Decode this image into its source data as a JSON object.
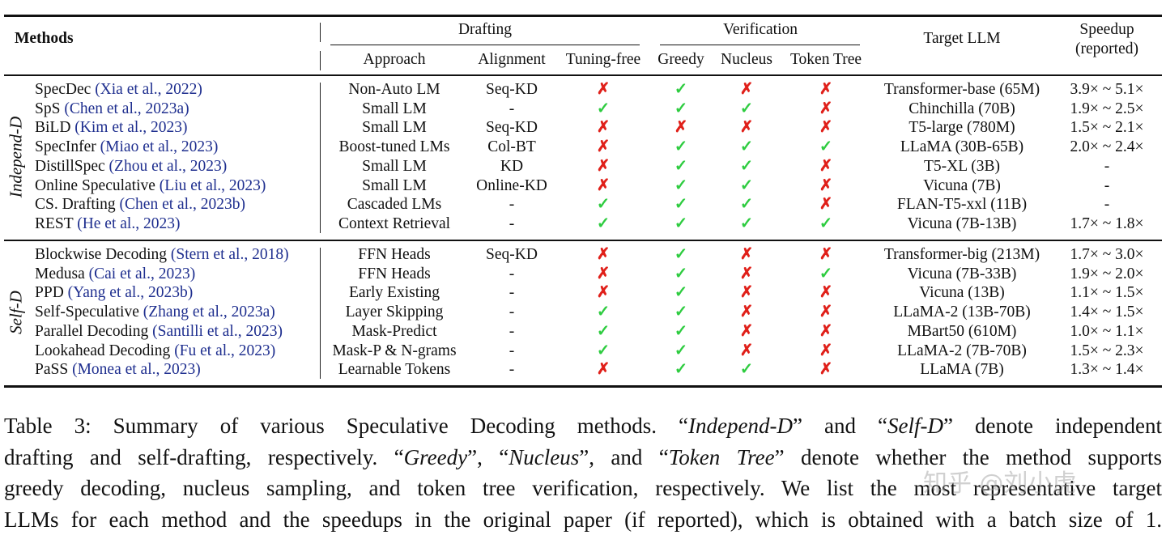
{
  "header": {
    "methods": "Methods",
    "drafting": "Drafting",
    "verification": "Verification",
    "approach": "Approach",
    "alignment": "Alignment",
    "tuning_free": "Tuning-free",
    "greedy": "Greedy",
    "nucleus": "Nucleus",
    "token_tree": "Token Tree",
    "target_llm": "Target LLM",
    "speedup_line1": "Speedup",
    "speedup_line2": "(reported)"
  },
  "groups": [
    {
      "label": "Independ-D",
      "rows": [
        {
          "name": "SpecDec",
          "cite": "(Xia et al., 2022)",
          "approach": "Non-Auto LM",
          "alignment": "Seq-KD",
          "tuning_free": false,
          "greedy": true,
          "nucleus": false,
          "token_tree": false,
          "target": "Transformer-base (65M)",
          "speedup": "3.9× ~ 5.1×"
        },
        {
          "name": "SpS",
          "cite": "(Chen et al., 2023a)",
          "approach": "Small LM",
          "alignment": "-",
          "tuning_free": true,
          "greedy": true,
          "nucleus": true,
          "token_tree": false,
          "target": "Chinchilla (70B)",
          "speedup": "1.9× ~ 2.5×"
        },
        {
          "name": "BiLD",
          "cite": "(Kim et al., 2023)",
          "approach": "Small LM",
          "alignment": "Seq-KD",
          "tuning_free": false,
          "greedy": false,
          "nucleus": false,
          "token_tree": false,
          "target": "T5-large (780M)",
          "speedup": "1.5× ~ 2.1×"
        },
        {
          "name": "SpecInfer",
          "cite": "(Miao et al., 2023)",
          "approach": "Boost-tuned LMs",
          "alignment": "Col-BT",
          "tuning_free": false,
          "greedy": true,
          "nucleus": true,
          "token_tree": true,
          "target": "LLaMA (30B-65B)",
          "speedup": "2.0× ~ 2.4×"
        },
        {
          "name": "DistillSpec",
          "cite": "(Zhou et al., 2023)",
          "approach": "Small LM",
          "alignment": "KD",
          "tuning_free": false,
          "greedy": true,
          "nucleus": true,
          "token_tree": false,
          "target": "T5-XL (3B)",
          "speedup": "-"
        },
        {
          "name": "Online Speculative",
          "cite": "(Liu et al., 2023)",
          "approach": "Small LM",
          "alignment": "Online-KD",
          "tuning_free": false,
          "greedy": true,
          "nucleus": true,
          "token_tree": false,
          "target": "Vicuna (7B)",
          "speedup": "-"
        },
        {
          "name": "CS. Drafting",
          "cite": "(Chen et al., 2023b)",
          "approach": "Cascaded LMs",
          "alignment": "-",
          "tuning_free": true,
          "greedy": true,
          "nucleus": true,
          "token_tree": false,
          "target": "FLAN-T5-xxl (11B)",
          "speedup": "-"
        },
        {
          "name": "REST",
          "cite": "(He et al., 2023)",
          "approach": "Context Retrieval",
          "alignment": "-",
          "tuning_free": true,
          "greedy": true,
          "nucleus": true,
          "token_tree": true,
          "target": "Vicuna (7B-13B)",
          "speedup": "1.7× ~ 1.8×"
        }
      ]
    },
    {
      "label": "Self-D",
      "rows": [
        {
          "name": "Blockwise Decoding",
          "cite": "(Stern et al., 2018)",
          "approach": "FFN Heads",
          "alignment": "Seq-KD",
          "tuning_free": false,
          "greedy": true,
          "nucleus": false,
          "token_tree": false,
          "target": "Transformer-big (213M)",
          "speedup": "1.7× ~ 3.0×"
        },
        {
          "name": "Medusa",
          "cite": "(Cai et al., 2023)",
          "approach": "FFN Heads",
          "alignment": "-",
          "tuning_free": false,
          "greedy": true,
          "nucleus": false,
          "token_tree": true,
          "target": "Vicuna (7B-33B)",
          "speedup": "1.9× ~ 2.0×"
        },
        {
          "name": "PPD",
          "cite": "(Yang et al., 2023b)",
          "approach": "Early Existing",
          "alignment": "-",
          "tuning_free": false,
          "greedy": true,
          "nucleus": false,
          "token_tree": false,
          "target": "Vicuna (13B)",
          "speedup": "1.1× ~ 1.5×"
        },
        {
          "name": "Self-Speculative",
          "cite": "(Zhang et al., 2023a)",
          "approach": "Layer Skipping",
          "alignment": "-",
          "tuning_free": true,
          "greedy": true,
          "nucleus": false,
          "token_tree": false,
          "target": "LLaMA-2 (13B-70B)",
          "speedup": "1.4× ~ 1.5×"
        },
        {
          "name": "Parallel Decoding",
          "cite": "(Santilli et al., 2023)",
          "approach": "Mask-Predict",
          "alignment": "-",
          "tuning_free": true,
          "greedy": true,
          "nucleus": false,
          "token_tree": false,
          "target": "MBart50 (610M)",
          "speedup": "1.0× ~ 1.1×"
        },
        {
          "name": "Lookahead Decoding",
          "cite": "(Fu et al., 2023)",
          "approach": "Mask-P & N-grams",
          "alignment": "-",
          "tuning_free": true,
          "greedy": true,
          "nucleus": false,
          "token_tree": false,
          "target": "LLaMA-2 (7B-70B)",
          "speedup": "1.5× ~ 2.3×"
        },
        {
          "name": "PaSS",
          "cite": "(Monea et al., 2023)",
          "approach": "Learnable Tokens",
          "alignment": "-",
          "tuning_free": false,
          "greedy": true,
          "nucleus": true,
          "token_tree": false,
          "target": "LLaMA (7B)",
          "speedup": "1.3× ~ 1.4×"
        }
      ]
    }
  ],
  "symbols": {
    "check": "✓",
    "cross": "✗",
    "check_color": "#2ecc40",
    "cross_color": "#e0201a"
  },
  "caption": [
    [
      [
        "Table 3: Summary of various Speculative Decoding methods. “",
        false
      ],
      [
        "Independ-D",
        true
      ],
      [
        "” and “",
        false
      ],
      [
        "Self-D",
        true
      ],
      [
        "” denote independent",
        false
      ]
    ],
    [
      [
        "drafting and self-drafting, respectively. “",
        false
      ],
      [
        "Greedy",
        true
      ],
      [
        "”, “",
        false
      ],
      [
        "Nucleus",
        true
      ],
      [
        "”, and “",
        false
      ],
      [
        "Token Tree",
        true
      ],
      [
        "” denote whether the method supports",
        false
      ]
    ],
    [
      [
        "greedy decoding, nucleus sampling, and token tree verification, respectively. We list the most representative target",
        false
      ]
    ],
    [
      [
        "LLMs for each method and the speedups in the original paper (if reported), which is obtained with a batch size of 1.",
        false
      ]
    ]
  ],
  "watermark": "知乎 @刘小虎"
}
